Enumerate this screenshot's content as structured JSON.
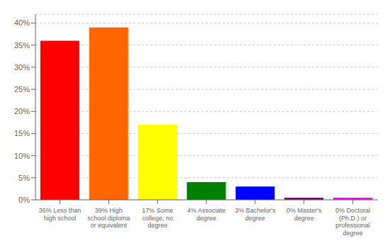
{
  "chart_data": {
    "type": "bar",
    "categories": [
      "36% Less than\nhigh school",
      "39% High\nschool diploma\nor equivalent",
      "17% Some\ncollege, no\ndegree",
      "4% Associate\ndegree",
      "3% Bachelor's\ndegree",
      "0% Master's\ndegree",
      "0% Doctoral\n(Ph.D.) or\nprofessional\ndegree"
    ],
    "values": [
      36,
      39,
      17,
      4,
      3,
      0.5,
      0.5
    ],
    "colors": [
      "#ff0000",
      "#ff6600",
      "#ffff00",
      "#008000",
      "#0000ff",
      "#800080",
      "#ff00ff"
    ],
    "ylim": [
      0,
      42
    ],
    "yticks": [
      {
        "value": 0,
        "label": "0%"
      },
      {
        "value": 5,
        "label": "5%"
      },
      {
        "value": 10,
        "label": "10%"
      },
      {
        "value": 15,
        "label": "15%"
      },
      {
        "value": 20,
        "label": "20%"
      },
      {
        "value": 25,
        "label": "25%"
      },
      {
        "value": 30,
        "label": "30%"
      },
      {
        "value": 35,
        "label": "35%"
      },
      {
        "value": 40,
        "label": "40%"
      }
    ],
    "grid": true
  }
}
